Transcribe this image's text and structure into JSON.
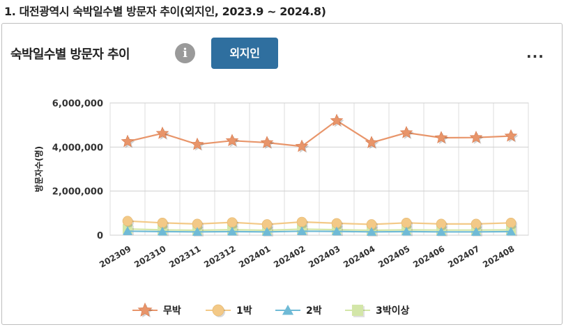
{
  "heading": "1. 대전광역시 숙박일수별 방문자 추이(외지인, 2023.9 ~ 2024.8)",
  "card": {
    "title": "숙박일수별 방문자 추이",
    "info_icon": "info-icon",
    "info_glyph": "i",
    "tab_label": "외지인",
    "more_label": "..."
  },
  "chart_data": {
    "type": "line",
    "ylabel": "방문자수(명)",
    "ylim": [
      0,
      6000000
    ],
    "yticks": [
      0,
      2000000,
      4000000,
      6000000
    ],
    "ytick_labels": [
      "0",
      "2,000,000",
      "4,000,000",
      "6,000,000"
    ],
    "categories": [
      "202309",
      "202310",
      "202311",
      "202312",
      "202401",
      "202402",
      "202403",
      "202404",
      "202405",
      "202406",
      "202407",
      "202408"
    ],
    "grid": true,
    "legend_position": "bottom",
    "series": [
      {
        "name": "무박",
        "marker": "star",
        "color": "#e8956a",
        "values": [
          4250000,
          4620000,
          4120000,
          4290000,
          4200000,
          4030000,
          5200000,
          4200000,
          4650000,
          4420000,
          4430000,
          4500000
        ]
      },
      {
        "name": "1박",
        "marker": "circle",
        "color": "#f3c987",
        "values": [
          640000,
          560000,
          510000,
          580000,
          490000,
          600000,
          540000,
          490000,
          560000,
          510000,
          510000,
          560000
        ]
      },
      {
        "name": "2박",
        "marker": "triangle",
        "color": "#6fbad6",
        "values": [
          180000,
          160000,
          150000,
          160000,
          150000,
          180000,
          170000,
          150000,
          160000,
          150000,
          150000,
          160000
        ]
      },
      {
        "name": "3박이상",
        "marker": "square",
        "color": "#d3e6a8",
        "values": [
          280000,
          240000,
          220000,
          250000,
          220000,
          270000,
          250000,
          220000,
          240000,
          230000,
          230000,
          240000
        ]
      }
    ]
  }
}
